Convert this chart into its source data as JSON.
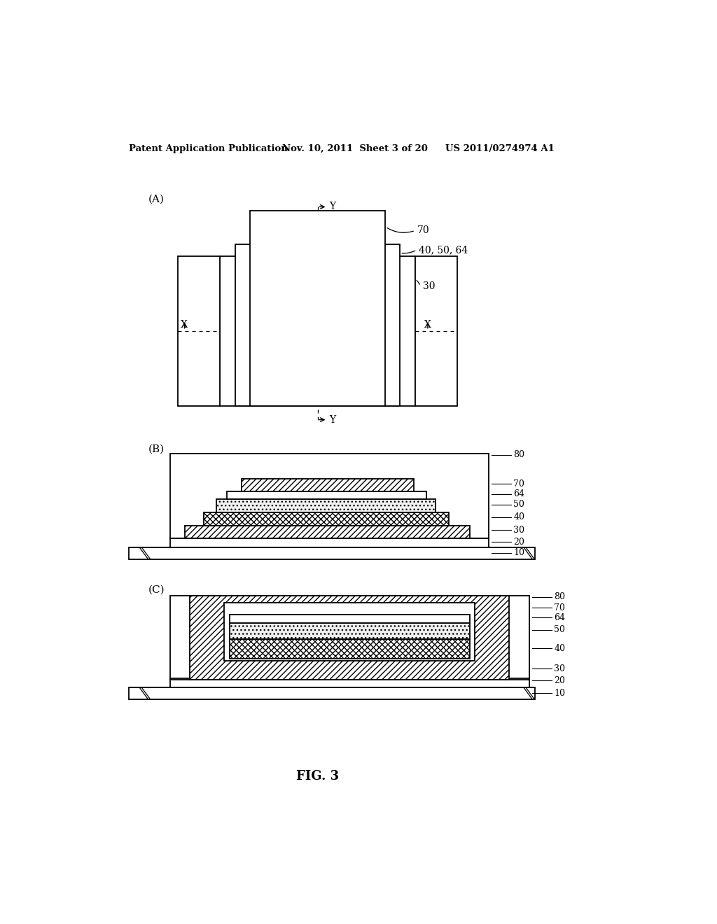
{
  "bg_color": "#ffffff",
  "header_left": "Patent Application Publication",
  "header_mid": "Nov. 10, 2011  Sheet 3 of 20",
  "header_right": "US 2011/0274974 A1",
  "fig_label": "FIG. 3",
  "panel_A_label": "(A)",
  "panel_B_label": "(B)",
  "panel_C_label": "(C)"
}
